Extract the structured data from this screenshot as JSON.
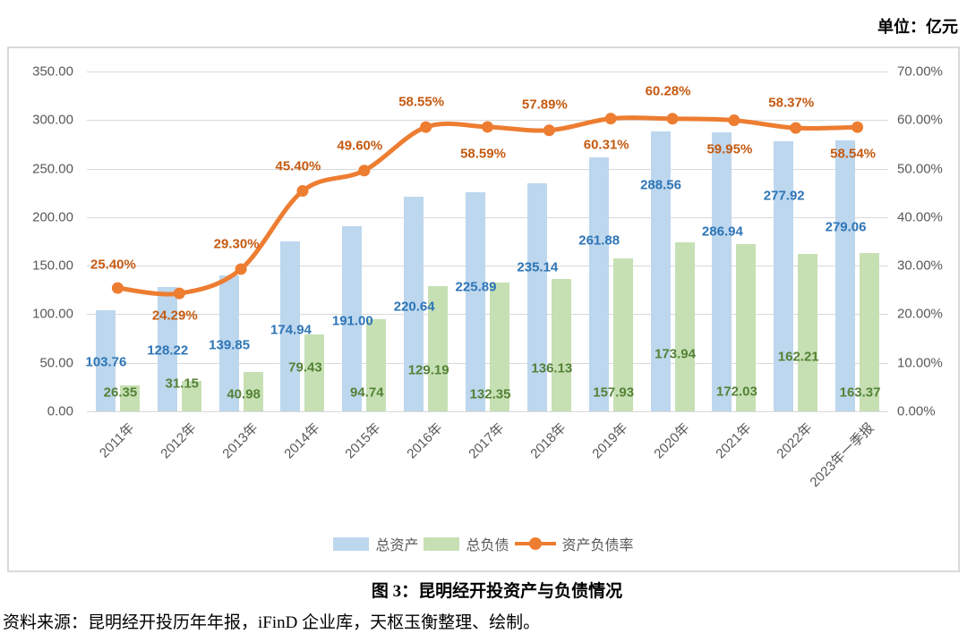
{
  "unit_label": "单位：亿元",
  "caption": "图 3：昆明经开投资产与负债情况",
  "source_note": "资料来源：昆明经开投历年年报，iFinD 企业库，天枢玉衡整理、绘制。",
  "chart_data": {
    "type": "combo-bar-line",
    "categories": [
      "2011年",
      "2012年",
      "2013年",
      "2014年",
      "2015年",
      "2016年",
      "2017年",
      "2018年",
      "2019年",
      "2020年",
      "2021年",
      "2022年",
      "2023年一季报"
    ],
    "series": [
      {
        "key": "total-assets",
        "name": "总资产",
        "type": "bar",
        "axis": "left",
        "color": "#BDD7EE",
        "label_color": "#2E75B6",
        "values": [
          103.76,
          128.22,
          139.85,
          174.94,
          191.0,
          220.64,
          225.89,
          235.14,
          261.88,
          288.56,
          286.94,
          277.92,
          279.06
        ]
      },
      {
        "key": "total-liabilities",
        "name": "总负债",
        "type": "bar",
        "axis": "left",
        "color": "#C6E0B4",
        "label_color": "#548235",
        "values": [
          26.35,
          31.15,
          40.98,
          79.43,
          94.74,
          129.19,
          132.35,
          136.13,
          157.93,
          173.94,
          172.03,
          162.21,
          163.37
        ]
      },
      {
        "key": "debt-ratio",
        "name": "资产负债率",
        "type": "line",
        "axis": "right",
        "color": "#ED7D31",
        "label_color": "#C55A11",
        "values": [
          25.4,
          24.29,
          29.3,
          45.4,
          49.6,
          58.55,
          58.59,
          57.89,
          60.31,
          60.28,
          59.95,
          58.37,
          58.54
        ]
      }
    ],
    "left_axis": {
      "min": 0,
      "max": 350,
      "step": 50,
      "ticks": [
        "350.00",
        "300.00",
        "250.00",
        "200.00",
        "150.00",
        "100.00",
        "50.00",
        "0.00"
      ]
    },
    "right_axis": {
      "min": 0,
      "max": 70,
      "step": 10,
      "ticks": [
        "70.00%",
        "60.00%",
        "50.00%",
        "40.00%",
        "30.00%",
        "20.00%",
        "10.00%",
        "0.00%"
      ]
    },
    "grid": true,
    "legend_position": "bottom"
  },
  "colors": {
    "grid": "#D9D9D9",
    "axis_text": "#595959",
    "panel_border": "#D9D9D9"
  }
}
